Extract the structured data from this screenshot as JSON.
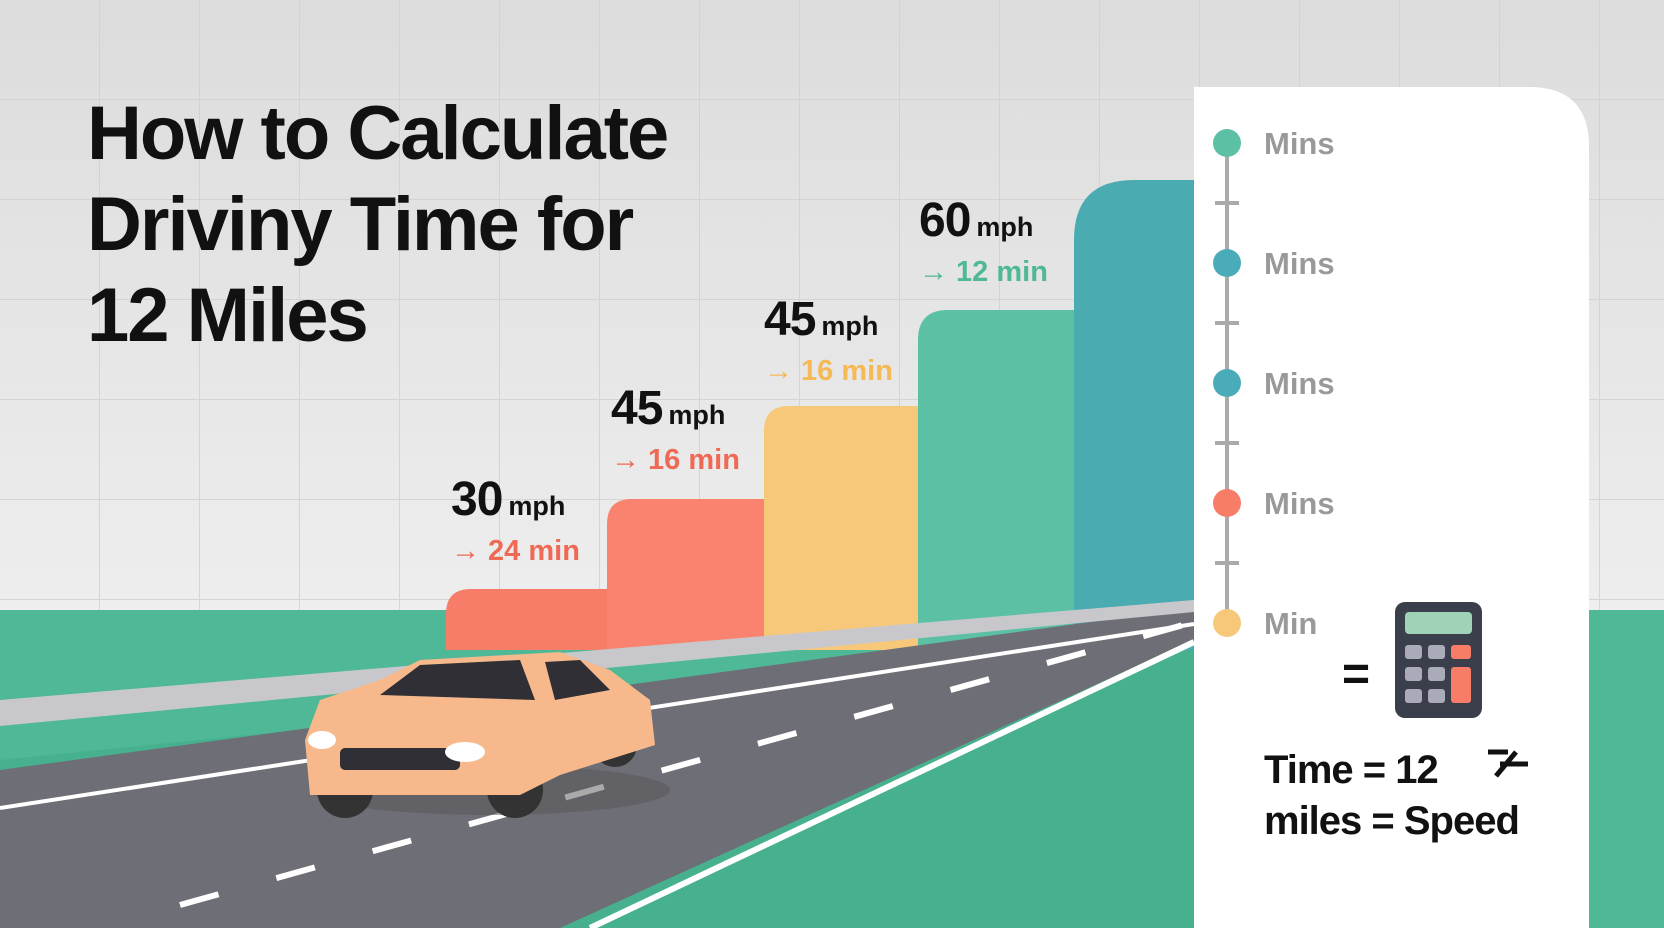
{
  "title": {
    "lines": [
      "How to Calculate",
      "Driviny Time for",
      "12 Miles"
    ]
  },
  "steps": [
    {
      "speed": 30,
      "unit": "mph",
      "time": "→ 24 min"
    },
    {
      "speed": 45,
      "unit": "mph",
      "time": "→ 16 min"
    },
    {
      "speed": 45,
      "unit": "mph",
      "time": "→ 16 min"
    },
    {
      "speed": 60,
      "unit": "mph",
      "time": "→ 12 min"
    }
  ],
  "panel": {
    "timeline": [
      "Mins",
      "Mins",
      "Mins",
      "Mins",
      "Min"
    ],
    "equals": "=",
    "formula": [
      "Time = 12",
      "miles = Speed"
    ]
  }
}
